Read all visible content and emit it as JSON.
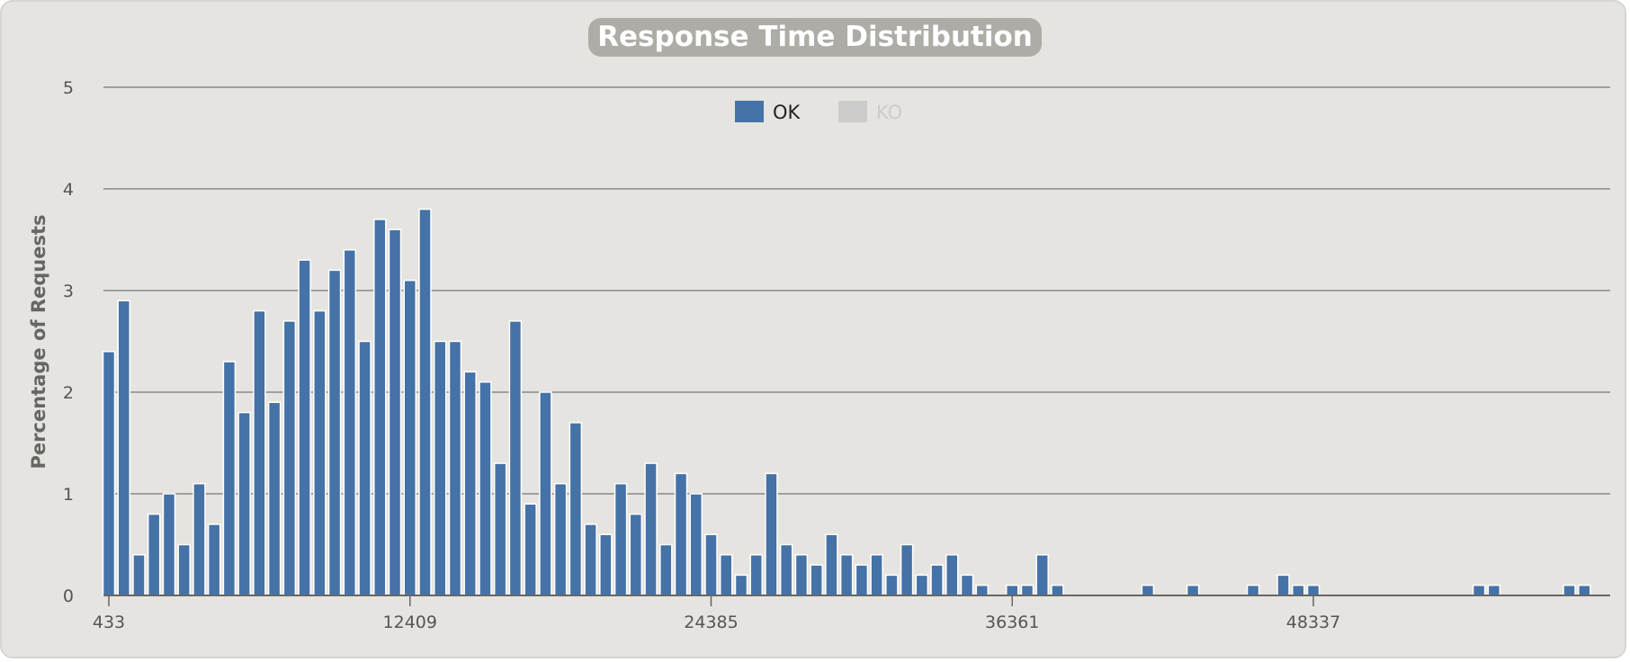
{
  "colors": {
    "panel_bg": "#e5e4e0",
    "title_pill": "#aeaca6",
    "ok_series": "#4572a7",
    "ko_series_inactive": "#cccccc",
    "grid": "#888888",
    "axis": "#666666"
  },
  "chart_data": {
    "type": "bar",
    "title": "Response Time Distribution",
    "xlabel": "",
    "ylabel": "Percentage of Requests",
    "ylim": [
      0,
      5
    ],
    "yticks": [
      0,
      1,
      2,
      3,
      4,
      5
    ],
    "xlim": [
      433,
      66000
    ],
    "xticks": [
      433,
      12409,
      24385,
      36361,
      48337
    ],
    "grid": true,
    "legend_position": "top-center",
    "legend": [
      {
        "name": "OK",
        "color": "#4572a7",
        "active": true
      },
      {
        "name": "KO",
        "color": "#cccccc",
        "active": false
      }
    ],
    "bin_start": 433,
    "bin_width": 598.8,
    "series": [
      {
        "name": "OK",
        "values": [
          2.4,
          2.9,
          0.4,
          0.8,
          1.0,
          0.5,
          1.1,
          0.7,
          2.3,
          1.8,
          2.8,
          1.9,
          2.7,
          3.3,
          2.8,
          3.2,
          3.4,
          2.5,
          3.7,
          3.6,
          3.1,
          3.8,
          2.5,
          2.5,
          2.2,
          2.1,
          1.3,
          2.7,
          0.9,
          2.0,
          1.1,
          1.7,
          0.7,
          0.6,
          1.1,
          0.8,
          1.3,
          0.5,
          1.2,
          1.0,
          0.6,
          0.4,
          0.2,
          0.4,
          1.2,
          0.5,
          0.4,
          0.3,
          0.6,
          0.4,
          0.3,
          0.4,
          0.2,
          0.5,
          0.2,
          0.3,
          0.4,
          0.2,
          0.1,
          0,
          0.1,
          0.1,
          0.4,
          0.1,
          0,
          0,
          0,
          0,
          0,
          0.1,
          0,
          0,
          0.1,
          0,
          0,
          0,
          0.1,
          0,
          0.2,
          0.1,
          0.1,
          0,
          0,
          0,
          0,
          0,
          0,
          0,
          0,
          0,
          0,
          0.1,
          0.1,
          0,
          0,
          0,
          0,
          0.1,
          0.1
        ]
      },
      {
        "name": "KO",
        "values": []
      }
    ]
  }
}
